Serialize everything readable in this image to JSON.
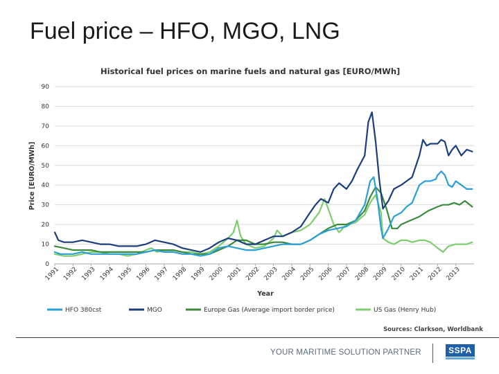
{
  "slide": {
    "title": "Fuel price – HFO, MGO, LNG",
    "footer_text": "YOUR MARITIME SOLUTION PARTNER",
    "logo_text": "SSPA"
  },
  "chart_data": {
    "type": "line",
    "title": "Historical  fuel prices on marine fuels and natural gas [EURO/MWh]",
    "xlabel": "Year",
    "ylabel": "Price [EURO/MWh]",
    "ylim": [
      0,
      90
    ],
    "xlim": [
      1991,
      2014
    ],
    "yticks": [
      0,
      10,
      20,
      30,
      40,
      50,
      60,
      70,
      80,
      90
    ],
    "ytick_labels": [
      "0",
      "10",
      "20",
      "30",
      "40",
      "50",
      "60",
      "70",
      "80",
      "90"
    ],
    "xticks": [
      1991,
      1992,
      1993,
      1994,
      1995,
      1996,
      1997,
      1998,
      1999,
      2000,
      2001,
      2002,
      2003,
      2004,
      2005,
      2006,
      2007,
      2008,
      2009,
      2010,
      2011,
      2012,
      2013
    ],
    "xtick_labels": [
      "1991",
      "1992",
      "1993",
      "1994",
      "1995",
      "1996",
      "1997",
      "1998",
      "1999",
      "2000",
      "2001",
      "2002",
      "2003",
      "2004",
      "2005",
      "2006",
      "2007",
      "2008",
      "2009",
      "2010",
      "2011",
      "2012",
      "2013"
    ],
    "grid": true,
    "source": "Sources: Clarkson, Worldbank",
    "series": [
      {
        "name": "HFO 380cst",
        "color": "#2a9fd6",
        "x": [
          1991.0,
          1991.3,
          1991.6,
          1992.0,
          1992.5,
          1993.0,
          1993.5,
          1994.0,
          1994.5,
          1995.0,
          1995.5,
          1996.0,
          1996.5,
          1997.0,
          1997.5,
          1998.0,
          1998.5,
          1999.0,
          1999.5,
          2000.0,
          2000.5,
          2001.0,
          2001.5,
          2002.0,
          2002.5,
          2003.0,
          2003.5,
          2004.0,
          2004.5,
          2005.0,
          2005.5,
          2006.0,
          2006.5,
          2007.0,
          2007.5,
          2008.0,
          2008.3,
          2008.5,
          2008.7,
          2008.9,
          2009.0,
          2009.3,
          2009.6,
          2010.0,
          2010.3,
          2010.6,
          2011.0,
          2011.3,
          2011.6,
          2011.9,
          2012.0,
          2012.2,
          2012.4,
          2012.6,
          2012.8,
          2013.0,
          2013.3,
          2013.6,
          2013.9
        ],
        "values": [
          6,
          5,
          5,
          5,
          6,
          5,
          5,
          5,
          5,
          5,
          5,
          6,
          7,
          6,
          6,
          5,
          5,
          4,
          5,
          8,
          9,
          8,
          7,
          7,
          8,
          9,
          10,
          10,
          10,
          12,
          15,
          17,
          18,
          19,
          22,
          30,
          42,
          44,
          33,
          18,
          13,
          18,
          24,
          26,
          29,
          31,
          40,
          42,
          42,
          43,
          45,
          47,
          45,
          40,
          39,
          42,
          40,
          38,
          38
        ]
      },
      {
        "name": "MGO",
        "color": "#1a3d7c",
        "x": [
          1991.0,
          1991.2,
          1991.5,
          1992.0,
          1992.5,
          1993.0,
          1993.5,
          1994.0,
          1994.5,
          1995.0,
          1995.5,
          1996.0,
          1996.5,
          1997.0,
          1997.5,
          1998.0,
          1998.5,
          1999.0,
          1999.5,
          2000.0,
          2000.5,
          2001.0,
          2001.5,
          2002.0,
          2002.5,
          2003.0,
          2003.5,
          2004.0,
          2004.5,
          2005.0,
          2005.3,
          2005.6,
          2006.0,
          2006.3,
          2006.6,
          2007.0,
          2007.3,
          2007.6,
          2008.0,
          2008.2,
          2008.4,
          2008.6,
          2008.8,
          2009.0,
          2009.3,
          2009.6,
          2010.0,
          2010.3,
          2010.6,
          2011.0,
          2011.2,
          2011.4,
          2011.6,
          2011.8,
          2012.0,
          2012.2,
          2012.4,
          2012.6,
          2012.8,
          2013.0,
          2013.3,
          2013.6,
          2013.9
        ],
        "values": [
          16,
          12,
          11,
          11,
          12,
          11,
          10,
          10,
          9,
          9,
          9,
          10,
          12,
          11,
          10,
          8,
          7,
          6,
          8,
          11,
          13,
          12,
          10,
          10,
          12,
          14,
          14,
          16,
          19,
          26,
          30,
          33,
          31,
          38,
          41,
          38,
          42,
          48,
          55,
          72,
          77,
          62,
          43,
          28,
          32,
          38,
          40,
          42,
          44,
          55,
          63,
          60,
          61,
          61,
          61,
          63,
          62,
          55,
          58,
          60,
          55,
          58,
          57
        ]
      },
      {
        "name": "Europe Gas (Average import border price)",
        "color": "#3a8a3a",
        "x": [
          1991.0,
          1991.5,
          1992.0,
          1992.5,
          1993.0,
          1993.5,
          1994.0,
          1994.5,
          1995.0,
          1995.5,
          1996.0,
          1996.5,
          1997.0,
          1997.5,
          1998.0,
          1998.5,
          1999.0,
          1999.5,
          2000.0,
          2000.5,
          2001.0,
          2001.5,
          2002.0,
          2002.5,
          2003.0,
          2003.5,
          2004.0,
          2004.5,
          2005.0,
          2005.5,
          2006.0,
          2006.5,
          2007.0,
          2007.5,
          2008.0,
          2008.3,
          2008.6,
          2008.9,
          2009.2,
          2009.5,
          2009.8,
          2010.0,
          2010.5,
          2011.0,
          2011.5,
          2012.0,
          2012.3,
          2012.6,
          2012.9,
          2013.2,
          2013.5,
          2013.9
        ],
        "values": [
          9,
          8,
          7,
          7,
          7,
          6,
          6,
          6,
          6,
          6,
          6,
          7,
          7,
          7,
          6,
          5,
          5,
          5,
          7,
          9,
          12,
          12,
          10,
          10,
          11,
          11,
          10,
          10,
          12,
          15,
          18,
          20,
          20,
          22,
          27,
          34,
          39,
          36,
          28,
          18,
          18,
          20,
          22,
          24,
          27,
          29,
          30,
          30,
          31,
          30,
          32,
          29
        ]
      },
      {
        "name": "US Gas (Henry Hub)",
        "color": "#7dcc6e",
        "x": [
          1991.0,
          1991.5,
          1992.0,
          1992.5,
          1993.0,
          1993.5,
          1994.0,
          1994.5,
          1995.0,
          1995.5,
          1996.0,
          1996.3,
          1996.6,
          1997.0,
          1997.5,
          1998.0,
          1998.5,
          1999.0,
          1999.5,
          2000.0,
          2000.5,
          2000.8,
          2001.0,
          2001.2,
          2001.5,
          2002.0,
          2002.5,
          2003.0,
          2003.2,
          2003.5,
          2004.0,
          2004.5,
          2005.0,
          2005.5,
          2005.8,
          2006.0,
          2006.3,
          2006.6,
          2007.0,
          2007.5,
          2008.0,
          2008.3,
          2008.6,
          2008.9,
          2009.0,
          2009.3,
          2009.6,
          2010.0,
          2010.3,
          2010.6,
          2011.0,
          2011.3,
          2011.6,
          2012.0,
          2012.3,
          2012.6,
          2013.0,
          2013.3,
          2013.6,
          2013.9
        ],
        "values": [
          5,
          4,
          4,
          5,
          6,
          6,
          5,
          5,
          4,
          5,
          7,
          8,
          6,
          7,
          7,
          6,
          6,
          5,
          6,
          9,
          13,
          16,
          22,
          14,
          10,
          8,
          9,
          13,
          17,
          14,
          16,
          17,
          20,
          26,
          33,
          28,
          20,
          16,
          20,
          21,
          25,
          31,
          35,
          26,
          13,
          11,
          10,
          12,
          12,
          11,
          12,
          12,
          11,
          8,
          6,
          9,
          10,
          10,
          10,
          11
        ]
      }
    ]
  }
}
